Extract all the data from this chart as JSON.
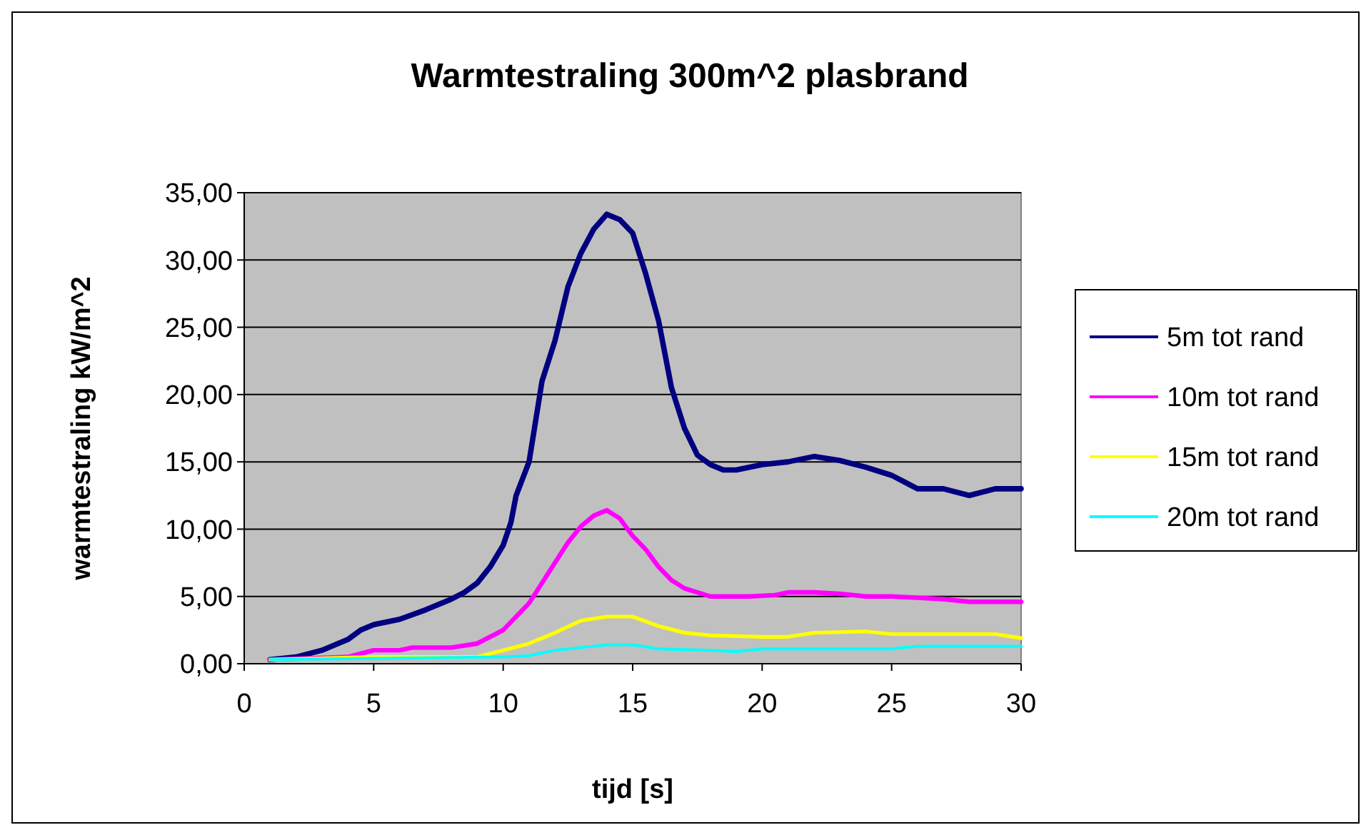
{
  "chart_data": {
    "type": "line",
    "title": "Warmtestraling 300m^2 plasbrand",
    "xlabel": "tijd [s]",
    "ylabel": "warmtestraling kW/m^2",
    "xlim": [
      0,
      30
    ],
    "xticks": [
      0,
      5,
      10,
      15,
      20,
      25,
      30
    ],
    "ylim": [
      0,
      35
    ],
    "yticks": [
      {
        "value": 0,
        "label": "0,00"
      },
      {
        "value": 5,
        "label": "5,00"
      },
      {
        "value": 10,
        "label": "10,00"
      },
      {
        "value": 15,
        "label": "15,00"
      },
      {
        "value": 20,
        "label": "20,00"
      },
      {
        "value": 25,
        "label": "25,00"
      },
      {
        "value": 30,
        "label": "30,00"
      },
      {
        "value": 35,
        "label": "35,00"
      }
    ],
    "grid": "y",
    "legend": "right",
    "marker": "none",
    "line_style": "solid",
    "series": [
      {
        "name": "5m tot rand",
        "color": "#000080",
        "x": [
          1,
          2,
          3,
          4,
          4.5,
          5,
          6,
          7,
          8,
          8.5,
          9,
          9.5,
          10,
          10.3,
          10.5,
          11,
          11.5,
          12,
          12.5,
          13,
          13.5,
          14,
          14.5,
          15,
          15.5,
          16,
          16.5,
          17,
          17.5,
          18,
          18.5,
          19,
          20,
          21,
          22,
          23,
          24,
          25,
          26,
          27,
          28,
          29,
          30
        ],
        "values": [
          0.3,
          0.5,
          1.0,
          1.8,
          2.5,
          2.9,
          3.3,
          4.0,
          4.8,
          5.3,
          6.0,
          7.2,
          8.8,
          10.5,
          12.5,
          15,
          21,
          24,
          28,
          30.5,
          32.3,
          33.4,
          33.0,
          32.0,
          29,
          25.5,
          20.5,
          17.5,
          15.5,
          14.8,
          14.4,
          14.4,
          14.8,
          15.0,
          15.4,
          15.1,
          14.6,
          14.0,
          13.0,
          13.0,
          12.5,
          13.0,
          13.0
        ]
      },
      {
        "name": "10m tot rand",
        "color": "#ff00ff",
        "x": [
          1,
          4,
          5,
          6,
          6.5,
          8,
          9,
          10,
          11,
          11.5,
          12,
          12.5,
          13,
          13.5,
          14,
          14.5,
          15,
          15.5,
          16,
          16.5,
          17,
          17.5,
          18,
          19.5,
          20.5,
          21,
          22,
          23,
          24,
          25,
          26,
          27,
          28,
          30
        ],
        "values": [
          0.3,
          0.5,
          1.0,
          1.0,
          1.2,
          1.2,
          1.5,
          2.5,
          4.5,
          6,
          7.5,
          9,
          10.2,
          11,
          11.4,
          10.8,
          9.5,
          8.5,
          7.2,
          6.2,
          5.6,
          5.3,
          5.0,
          5.0,
          5.1,
          5.3,
          5.3,
          5.2,
          5.0,
          5.0,
          4.9,
          4.8,
          4.6,
          4.6
        ]
      },
      {
        "name": "15m tot rand",
        "color": "#ffff00",
        "x": [
          1,
          5,
          9,
          10,
          11,
          12,
          13,
          14,
          15,
          16,
          17,
          18,
          20,
          21,
          22,
          24,
          25,
          29,
          30
        ],
        "values": [
          0.3,
          0.5,
          0.5,
          1.0,
          1.5,
          2.3,
          3.2,
          3.5,
          3.5,
          2.8,
          2.3,
          2.1,
          2.0,
          2.0,
          2.3,
          2.4,
          2.2,
          2.2,
          1.9
        ]
      },
      {
        "name": "20m tot rand",
        "color": "#00ffff",
        "x": [
          1,
          10,
          11,
          12,
          13,
          14,
          15,
          16,
          18,
          19,
          20,
          25,
          26,
          30
        ],
        "values": [
          0.3,
          0.5,
          0.6,
          1.0,
          1.2,
          1.4,
          1.4,
          1.1,
          1.0,
          0.9,
          1.1,
          1.1,
          1.3,
          1.3
        ]
      }
    ]
  }
}
